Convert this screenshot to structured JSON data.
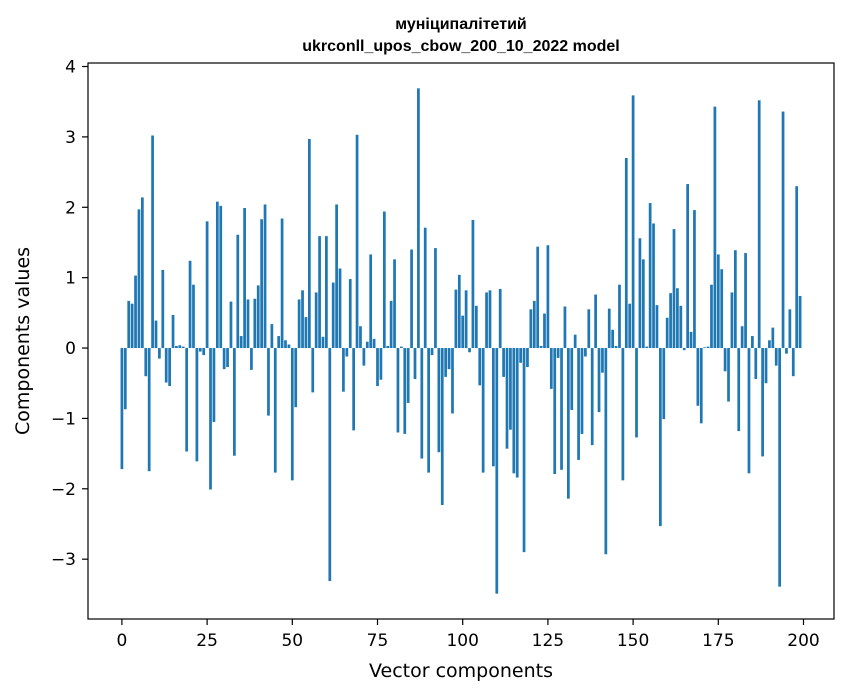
{
  "chart_data": {
    "type": "bar",
    "title_line1": "муніципалітетий",
    "title_line2": "ukrconll_upos_cbow_200_10_2022 model",
    "xlabel": "Vector components",
    "ylabel": "Components values",
    "xlim": [
      -9.95,
      208.95
    ],
    "ylim": [
      -3.85,
      4.05
    ],
    "xticks": [
      0,
      25,
      50,
      75,
      100,
      125,
      150,
      175,
      200
    ],
    "yticks": [
      -3,
      -2,
      -1,
      0,
      1,
      2,
      3,
      4
    ],
    "ytick_labels": [
      "−3",
      "−2",
      "−1",
      "0",
      "1",
      "2",
      "3",
      "4"
    ],
    "grid": false,
    "bar_color": "#1f77b4",
    "x": [
      0,
      1,
      2,
      3,
      4,
      5,
      6,
      7,
      8,
      9,
      10,
      11,
      12,
      13,
      14,
      15,
      16,
      17,
      18,
      19,
      20,
      21,
      22,
      23,
      24,
      25,
      26,
      27,
      28,
      29,
      30,
      31,
      32,
      33,
      34,
      35,
      36,
      37,
      38,
      39,
      40,
      41,
      42,
      43,
      44,
      45,
      46,
      47,
      48,
      49,
      50,
      51,
      52,
      53,
      54,
      55,
      56,
      57,
      58,
      59,
      60,
      61,
      62,
      63,
      64,
      65,
      66,
      67,
      68,
      69,
      70,
      71,
      72,
      73,
      74,
      75,
      76,
      77,
      78,
      79,
      80,
      81,
      82,
      83,
      84,
      85,
      86,
      87,
      88,
      89,
      90,
      91,
      92,
      93,
      94,
      95,
      96,
      97,
      98,
      99,
      100,
      101,
      102,
      103,
      104,
      105,
      106,
      107,
      108,
      109,
      110,
      111,
      112,
      113,
      114,
      115,
      116,
      117,
      118,
      119,
      120,
      121,
      122,
      123,
      124,
      125,
      126,
      127,
      128,
      129,
      130,
      131,
      132,
      133,
      134,
      135,
      136,
      137,
      138,
      139,
      140,
      141,
      142,
      143,
      144,
      145,
      146,
      147,
      148,
      149,
      150,
      151,
      152,
      153,
      154,
      155,
      156,
      157,
      158,
      159,
      160,
      161,
      162,
      163,
      164,
      165,
      166,
      167,
      168,
      169,
      170,
      171,
      172,
      173,
      174,
      175,
      176,
      177,
      178,
      179,
      180,
      181,
      182,
      183,
      184,
      185,
      186,
      187,
      188,
      189,
      190,
      191,
      192,
      193,
      194,
      195,
      196,
      197,
      198,
      199
    ],
    "values": [
      -1.72,
      -0.87,
      0.67,
      0.63,
      1.03,
      1.97,
      2.14,
      -0.4,
      -1.75,
      3.02,
      0.39,
      -0.15,
      1.11,
      -0.49,
      -0.54,
      0.47,
      0.03,
      0.04,
      0.02,
      -1.47,
      1.24,
      0.9,
      -1.61,
      -0.05,
      -0.1,
      1.8,
      -2.01,
      -1.05,
      2.08,
      2.02,
      -0.3,
      -0.27,
      0.66,
      -1.53,
      1.61,
      0.17,
      1.99,
      0.69,
      -0.31,
      0.7,
      0.89,
      1.83,
      2.04,
      -0.96,
      0.34,
      -1.77,
      0.17,
      1.84,
      0.11,
      0.05,
      -1.88,
      -0.84,
      0.69,
      0.82,
      0.44,
      2.97,
      -0.63,
      0.79,
      1.59,
      0.16,
      1.59,
      -3.31,
      0.93,
      2.04,
      1.13,
      -0.62,
      -0.12,
      0.98,
      -1.17,
      3.03,
      0.31,
      -0.25,
      0.09,
      1.33,
      0.13,
      -0.54,
      -0.45,
      1.94,
      0.03,
      0.67,
      1.26,
      -1.2,
      0.02,
      -1.22,
      -0.78,
      1.4,
      -0.44,
      3.69,
      -1.57,
      1.71,
      -1.77,
      -0.1,
      1.42,
      -1.48,
      -2.23,
      -0.41,
      -0.3,
      -0.93,
      0.83,
      1.04,
      0.46,
      0.82,
      -0.06,
      1.82,
      0.6,
      -0.53,
      -1.77,
      0.79,
      0.82,
      -1.68,
      -3.49,
      0.84,
      -0.41,
      -1.43,
      -1.16,
      -1.78,
      -1.84,
      -0.21,
      -2.9,
      -0.27,
      0.55,
      0.67,
      1.44,
      0.03,
      0.49,
      1.46,
      -0.58,
      -1.79,
      -0.14,
      -1.73,
      0.59,
      -2.14,
      -0.88,
      0.19,
      -1.59,
      -1.22,
      -0.12,
      0.55,
      -1.38,
      0.76,
      -0.91,
      -0.35,
      -2.93,
      0.56,
      0.26,
      0.03,
      0.9,
      -1.88,
      2.7,
      0.63,
      3.59,
      -1.27,
      1.56,
      1.26,
      0.02,
      2.06,
      1.77,
      0.61,
      -2.53,
      -1.01,
      0.43,
      0.78,
      1.69,
      0.85,
      0.6,
      -0.03,
      2.33,
      0.23,
      1.96,
      -0.82,
      -1.07,
      0.01,
      0.02,
      0.9,
      3.43,
      1.33,
      1.12,
      -0.33,
      -0.76,
      0.79,
      1.39,
      -1.18,
      0.31,
      1.35,
      -1.78,
      0.17,
      -0.44,
      3.52,
      -1.54,
      -0.5,
      0.11,
      0.29,
      -0.25,
      -3.39,
      3.36,
      -0.08,
      0.55,
      -0.4,
      2.3,
      0.74
    ]
  }
}
